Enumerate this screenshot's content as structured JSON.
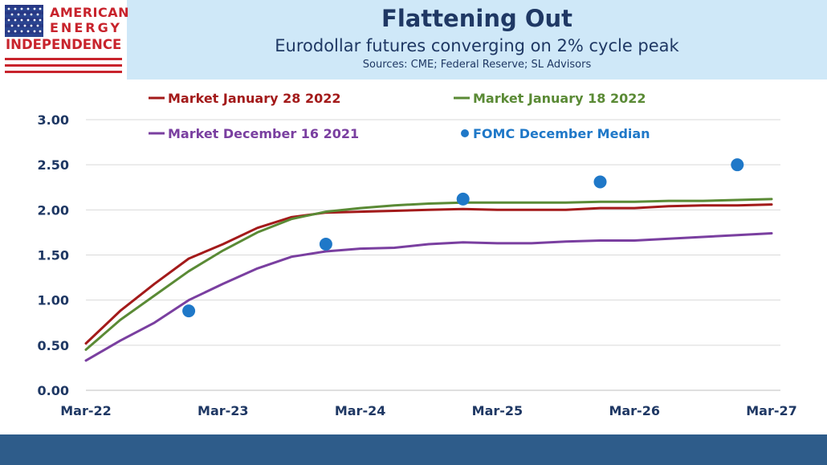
{
  "header": {
    "logo_line1": "AMERICAN",
    "logo_line2": "ENERGY",
    "logo_line3": "INDEPENDENCE",
    "title": "Flattening Out",
    "subtitle": "Eurodollar futures converging on 2% cycle peak",
    "sources": "Sources: CME; Federal Reserve; SL Advisors"
  },
  "colors": {
    "header_bg": "#cfe8f8",
    "title": "#1f3864",
    "logo_red": "#c8232c",
    "logo_blue": "#1f3a8a",
    "footer": "#2e5c8a"
  },
  "chart_data": {
    "type": "line",
    "title": "",
    "xlabel": "",
    "ylabel": "",
    "ylim": [
      0,
      3
    ],
    "y_ticks": [
      "0.00",
      "0.50",
      "1.00",
      "1.50",
      "2.00",
      "2.50",
      "3.00"
    ],
    "x_ticks": [
      "Mar-22",
      "Mar-23",
      "Mar-24",
      "Mar-25",
      "Mar-26",
      "Mar-27"
    ],
    "grid": true,
    "legend_position": "top",
    "series": [
      {
        "name": "Market January 28 2022",
        "type": "line",
        "color": "#a31a1a",
        "x": [
          "Mar-22",
          "Jun-22",
          "Sep-22",
          "Dec-22",
          "Mar-23",
          "Jun-23",
          "Sep-23",
          "Dec-23",
          "Mar-24",
          "Jun-24",
          "Sep-24",
          "Dec-24",
          "Mar-25",
          "Jun-25",
          "Sep-25",
          "Dec-25",
          "Mar-26",
          "Jun-26",
          "Sep-26",
          "Dec-26",
          "Mar-27"
        ],
        "values": [
          0.52,
          0.88,
          1.18,
          1.46,
          1.62,
          1.8,
          1.92,
          1.97,
          1.98,
          1.99,
          2.0,
          2.01,
          2.0,
          2.0,
          2.0,
          2.02,
          2.02,
          2.04,
          2.05,
          2.05,
          2.06
        ]
      },
      {
        "name": "Market January 18 2022",
        "type": "line",
        "color": "#5a8a35",
        "x": [
          "Mar-22",
          "Jun-22",
          "Sep-22",
          "Dec-22",
          "Mar-23",
          "Jun-23",
          "Sep-23",
          "Dec-23",
          "Mar-24",
          "Jun-24",
          "Sep-24",
          "Dec-24",
          "Mar-25",
          "Jun-25",
          "Sep-25",
          "Dec-25",
          "Mar-26",
          "Jun-26",
          "Sep-26",
          "Dec-26",
          "Mar-27"
        ],
        "values": [
          0.45,
          0.78,
          1.05,
          1.32,
          1.55,
          1.75,
          1.9,
          1.98,
          2.02,
          2.05,
          2.07,
          2.08,
          2.08,
          2.08,
          2.08,
          2.09,
          2.09,
          2.1,
          2.1,
          2.11,
          2.12
        ]
      },
      {
        "name": "Market December 16 2021",
        "type": "line",
        "color": "#7a3fa0",
        "x": [
          "Mar-22",
          "Jun-22",
          "Sep-22",
          "Dec-22",
          "Mar-23",
          "Jun-23",
          "Sep-23",
          "Dec-23",
          "Mar-24",
          "Jun-24",
          "Sep-24",
          "Dec-24",
          "Mar-25",
          "Jun-25",
          "Sep-25",
          "Dec-25",
          "Mar-26",
          "Jun-26",
          "Sep-26",
          "Dec-26",
          "Mar-27"
        ],
        "values": [
          0.33,
          0.55,
          0.75,
          1.0,
          1.18,
          1.35,
          1.48,
          1.54,
          1.57,
          1.58,
          1.62,
          1.64,
          1.63,
          1.63,
          1.65,
          1.66,
          1.66,
          1.68,
          1.7,
          1.72,
          1.74
        ]
      },
      {
        "name": "FOMC December Median",
        "type": "scatter",
        "color": "#1f78c8",
        "x": [
          "Dec-22",
          "Dec-23",
          "Dec-24",
          "Dec-25",
          "Dec-26"
        ],
        "values": [
          0.88,
          1.62,
          2.12,
          2.31,
          2.5
        ]
      }
    ]
  }
}
